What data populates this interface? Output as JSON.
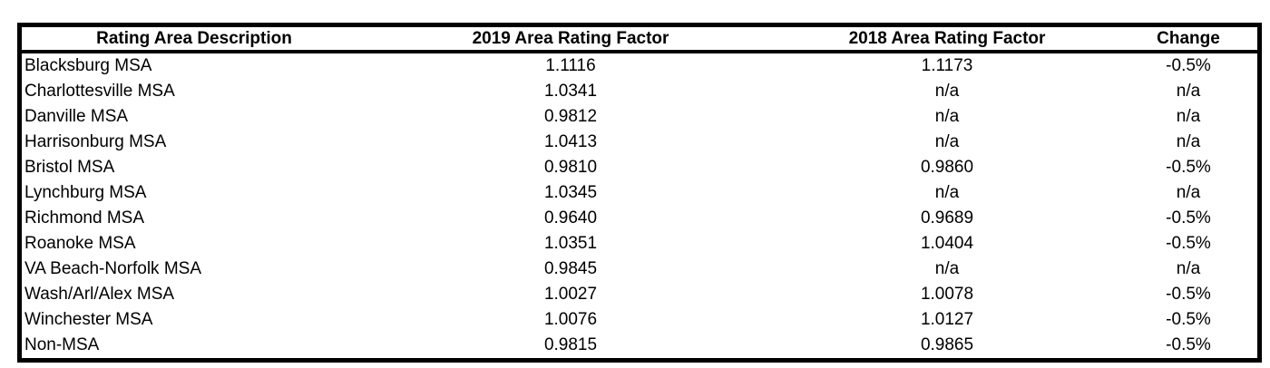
{
  "colors": {
    "border": "#000000",
    "text": "#000000",
    "background": "#ffffff"
  },
  "chart_data": {
    "type": "table",
    "columns": [
      "Rating Area Description",
      "2019 Area Rating Factor",
      "2018 Area Rating Factor",
      "Change"
    ],
    "rows": [
      [
        "Blacksburg MSA",
        "1.1116",
        "1.1173",
        "-0.5%"
      ],
      [
        "Charlottesville MSA",
        "1.0341",
        "n/a",
        "n/a"
      ],
      [
        "Danville MSA",
        "0.9812",
        "n/a",
        "n/a"
      ],
      [
        "Harrisonburg MSA",
        "1.0413",
        "n/a",
        "n/a"
      ],
      [
        "Bristol MSA",
        "0.9810",
        "0.9860",
        "-0.5%"
      ],
      [
        "Lynchburg MSA",
        "1.0345",
        "n/a",
        "n/a"
      ],
      [
        "Richmond MSA",
        "0.9640",
        "0.9689",
        "-0.5%"
      ],
      [
        "Roanoke MSA",
        "1.0351",
        "1.0404",
        "-0.5%"
      ],
      [
        "VA Beach-Norfolk MSA",
        "0.9845",
        "n/a",
        "n/a"
      ],
      [
        "Wash/Arl/Alex MSA",
        "1.0027",
        "1.0078",
        "-0.5%"
      ],
      [
        "Winchester MSA",
        "1.0076",
        "1.0127",
        "-0.5%"
      ],
      [
        "Non-MSA",
        "0.9815",
        "0.9865",
        "-0.5%"
      ]
    ],
    "layout": {
      "grid": "none-inside",
      "outer_border": "thick",
      "header_separator": "thick",
      "column_alignment": [
        "left",
        "center",
        "center",
        "center"
      ],
      "header_alignment": "center"
    }
  }
}
